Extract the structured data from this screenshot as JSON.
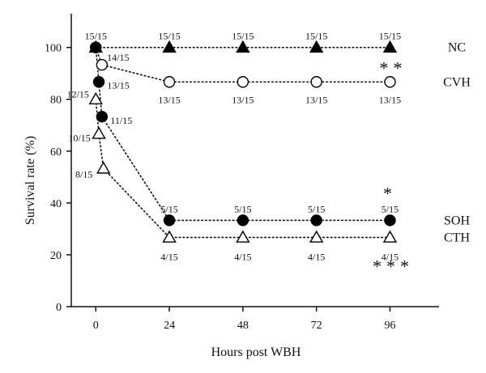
{
  "chart_data": {
    "type": "line",
    "title": "",
    "xlabel": "Hours post WBH",
    "ylabel": "Survival rate (%)",
    "xlim": [
      -8,
      112
    ],
    "ylim": [
      0,
      113
    ],
    "x_ticks": [
      0,
      24,
      48,
      72,
      96
    ],
    "y_ticks": [
      0,
      20,
      40,
      60,
      80,
      100
    ],
    "grid": false,
    "legend": "series names printed at right end of each line",
    "series": [
      {
        "name": "NC",
        "marker": "filled-triangle",
        "significance": "",
        "points": [
          {
            "x": 0,
            "y": 100,
            "label": "15/15"
          },
          {
            "x": 24,
            "y": 100,
            "label": "15/15"
          },
          {
            "x": 48,
            "y": 100,
            "label": "15/15"
          },
          {
            "x": 72,
            "y": 100,
            "label": "15/15"
          },
          {
            "x": 96,
            "y": 100,
            "label": "15/15"
          }
        ]
      },
      {
        "name": "CVH",
        "marker": "open-circle",
        "significance": "**",
        "points": [
          {
            "x": 0,
            "y": 100,
            "label": ""
          },
          {
            "x": 2,
            "y": 93.3,
            "label": "14/15"
          },
          {
            "x": 24,
            "y": 86.7,
            "label": "13/15"
          },
          {
            "x": 48,
            "y": 86.7,
            "label": "13/15"
          },
          {
            "x": 72,
            "y": 86.7,
            "label": "13/15"
          },
          {
            "x": 96,
            "y": 86.7,
            "label": "13/15"
          }
        ]
      },
      {
        "name": "SOH",
        "marker": "filled-circle",
        "significance": "*",
        "points": [
          {
            "x": 0,
            "y": 100,
            "label": ""
          },
          {
            "x": 1,
            "y": 86.7,
            "label": "13/15"
          },
          {
            "x": 2,
            "y": 73.3,
            "label": "11/15"
          },
          {
            "x": 24,
            "y": 33.3,
            "label": "5/15"
          },
          {
            "x": 48,
            "y": 33.3,
            "label": "5/15"
          },
          {
            "x": 72,
            "y": 33.3,
            "label": "5/15"
          },
          {
            "x": 96,
            "y": 33.3,
            "label": "5/15"
          }
        ]
      },
      {
        "name": "CTH",
        "marker": "open-triangle",
        "significance": "***",
        "points": [
          {
            "x": 0,
            "y": 80,
            "label": "12/15"
          },
          {
            "x": 1,
            "y": 66.7,
            "label": "10/15"
          },
          {
            "x": 2.5,
            "y": 53.3,
            "label": "8/15"
          },
          {
            "x": 24,
            "y": 26.7,
            "label": "4/15"
          },
          {
            "x": 48,
            "y": 26.7,
            "label": "4/15"
          },
          {
            "x": 72,
            "y": 26.7,
            "label": "4/15"
          },
          {
            "x": 96,
            "y": 26.7,
            "label": "4/15"
          }
        ]
      }
    ]
  }
}
